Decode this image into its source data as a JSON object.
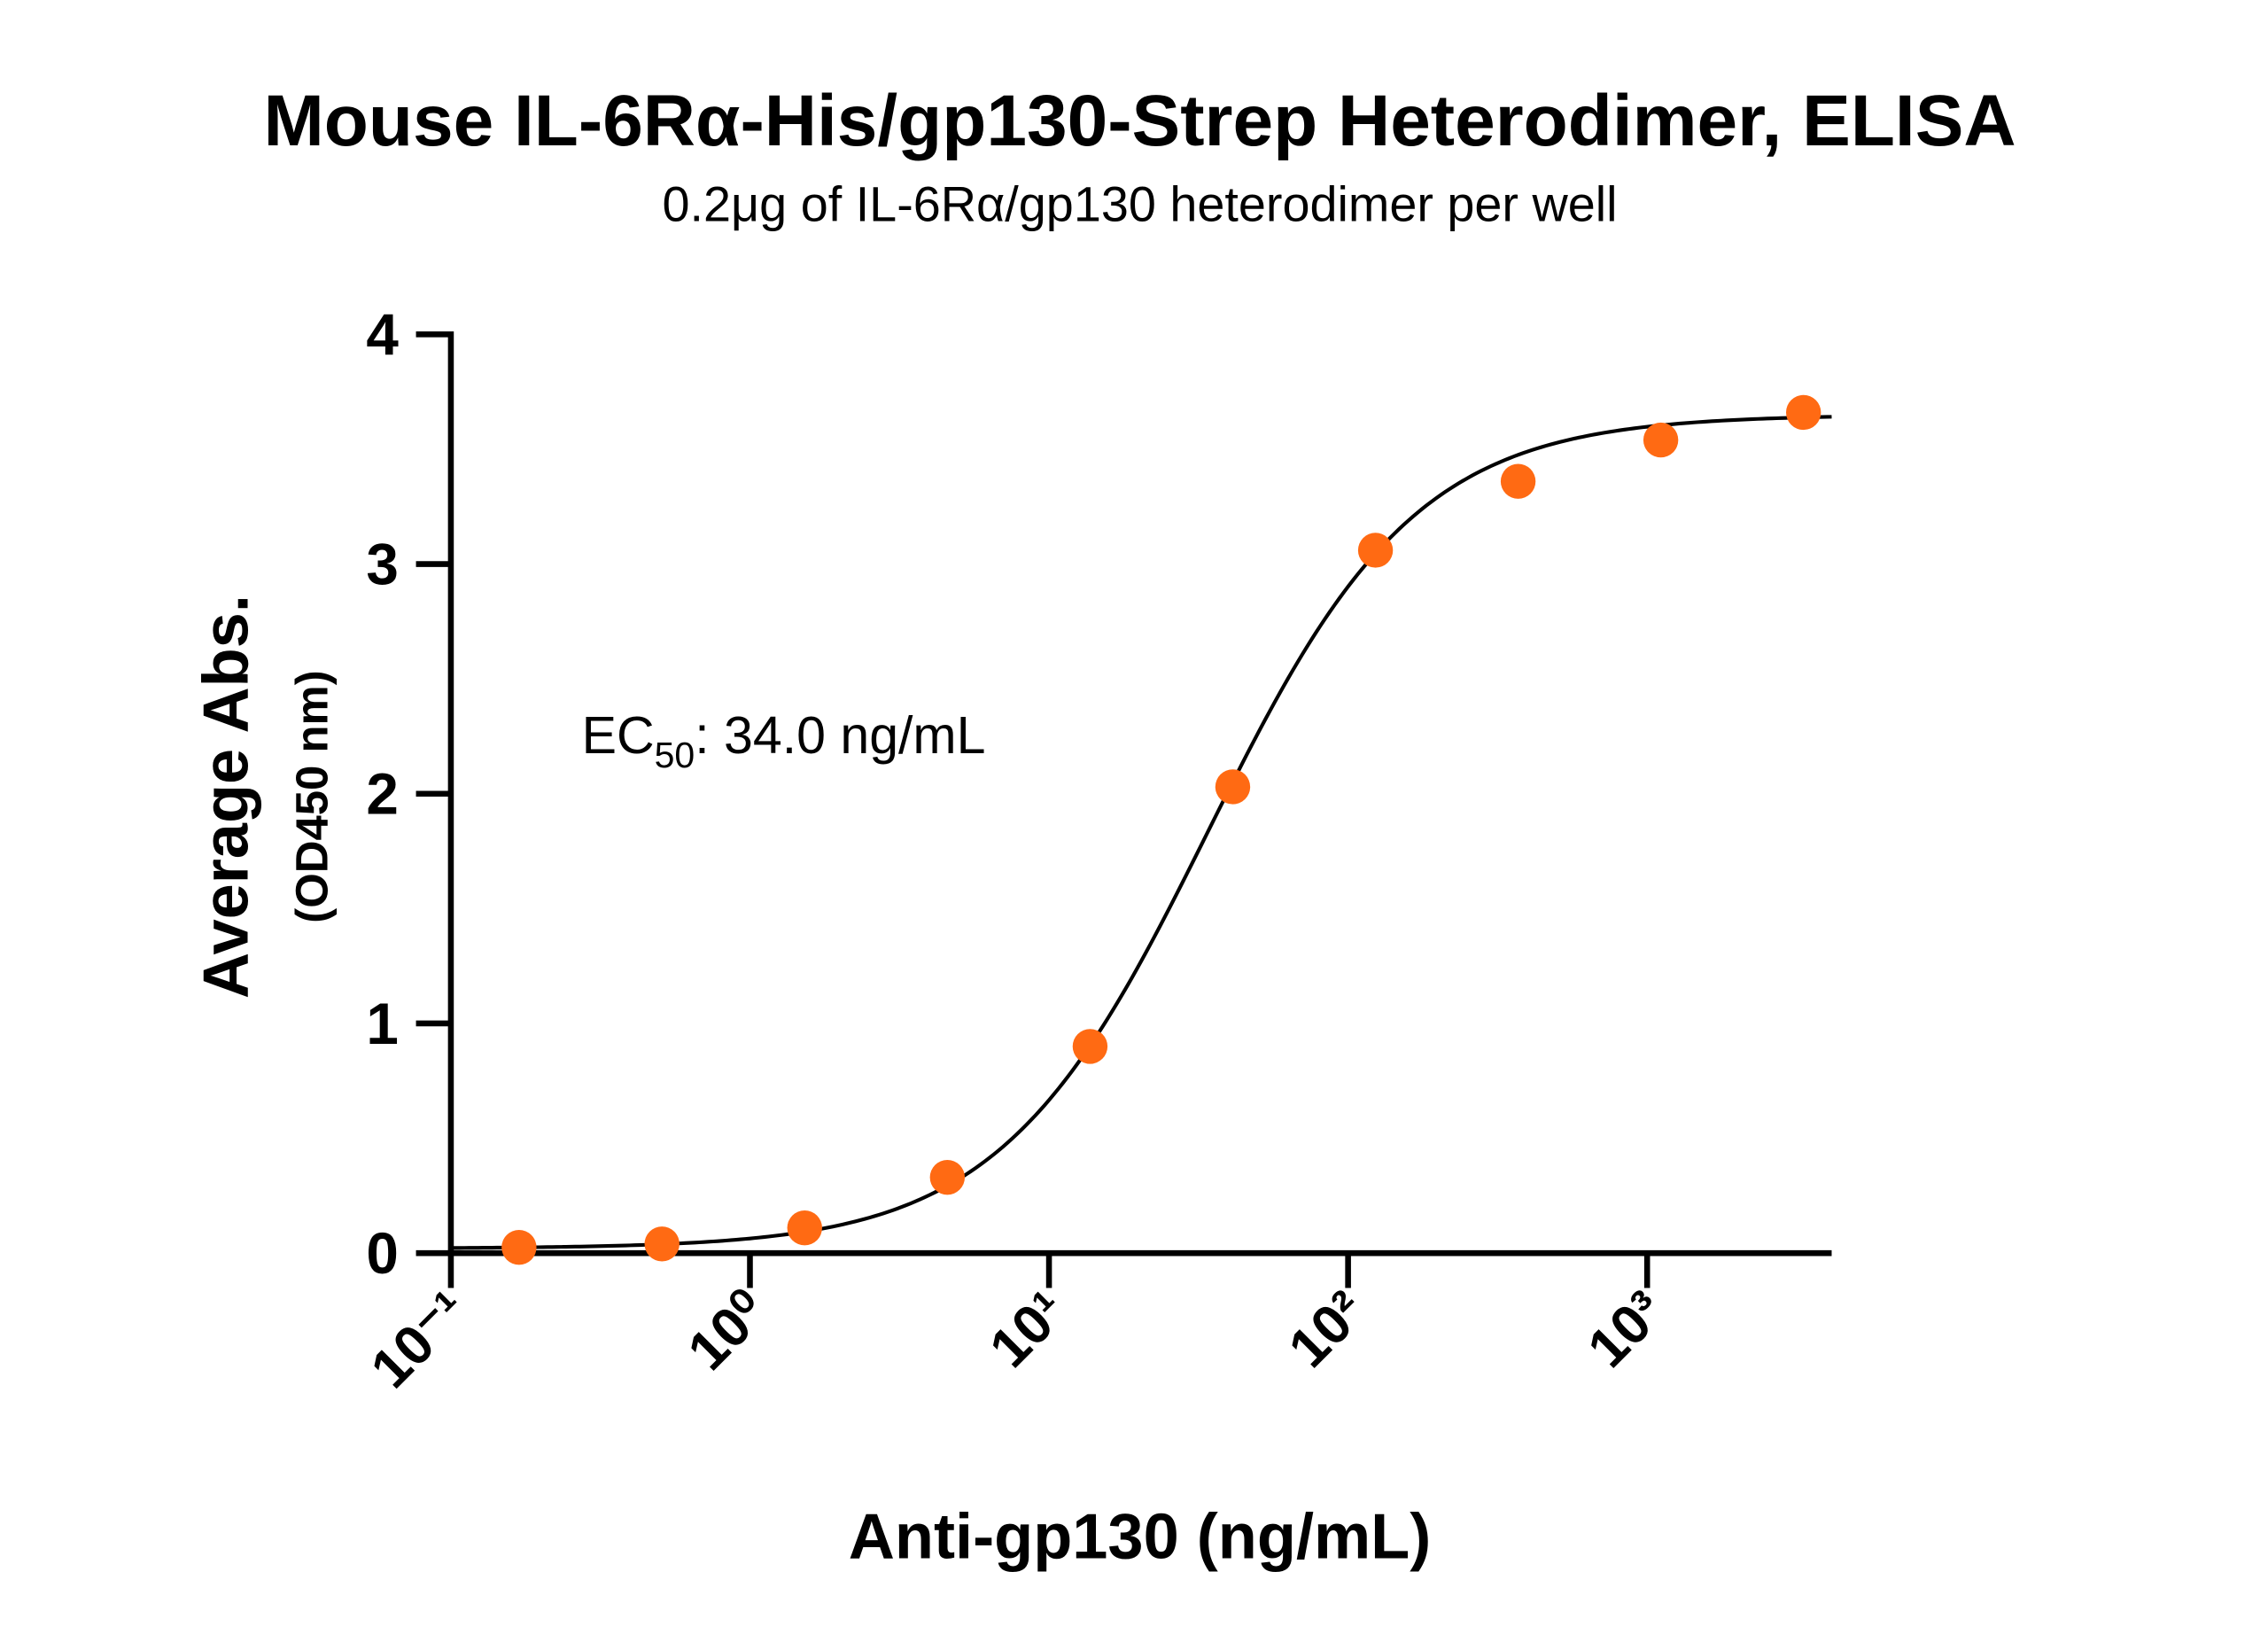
{
  "chart_data": {
    "type": "scatter",
    "title": "Mouse IL-6Rα-His/gp130-Strep Heterodimer, ELISA",
    "subtitle": "0.2μg of IL-6Rα/gp130 heterodimer per well",
    "xlabel": "Anti-gp130 (ng/mL)",
    "ylabel": "Average Abs.",
    "ylabel_unit": "(OD450 nm)",
    "annotation": {
      "text": "EC",
      "sub": "50",
      "rest": ": 34.0 ng/mL"
    },
    "x_log": true,
    "xlim": [
      0.1,
      4140
    ],
    "xticks": [
      {
        "value": 0.1,
        "label": "10⁻¹"
      },
      {
        "value": 1,
        "label": "10⁰"
      },
      {
        "value": 10,
        "label": "10¹"
      },
      {
        "value": 100,
        "label": "10²"
      },
      {
        "value": 1000,
        "label": "10³"
      }
    ],
    "ylim": [
      0,
      4
    ],
    "yticks": [
      0,
      1,
      2,
      3,
      4
    ],
    "color": "#ff6a13",
    "x": [
      0.169,
      0.508,
      1.524,
      4.572,
      13.72,
      41.15,
      123.5,
      370.4,
      1111,
      3333
    ],
    "values": [
      0.025,
      0.04,
      0.11,
      0.33,
      0.9,
      2.03,
      3.06,
      3.36,
      3.54,
      3.66
    ],
    "fit": {
      "model": "4PL",
      "bottom": 0.02,
      "top": 3.65,
      "ec50": 34.0,
      "hill": 1.25,
      "color": "#000000"
    }
  }
}
